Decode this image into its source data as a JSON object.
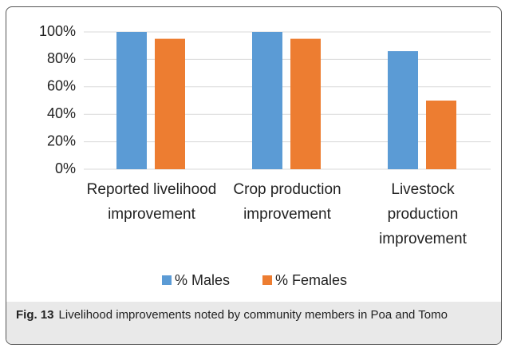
{
  "chart_data": {
    "type": "bar",
    "categories": [
      "Reported livelihood improvement",
      "Crop production improvement",
      "Livestock production improvement"
    ],
    "series": [
      {
        "name": "% Males",
        "color": "#5b9bd5",
        "values": [
          100,
          100,
          86
        ]
      },
      {
        "name": "% Females",
        "color": "#ed7d31",
        "values": [
          95,
          95,
          50
        ]
      }
    ],
    "ylim": [
      0,
      100
    ],
    "yticks": [
      {
        "value": 0,
        "label": "0%"
      },
      {
        "value": 20,
        "label": "20%"
      },
      {
        "value": 40,
        "label": "40%"
      },
      {
        "value": 60,
        "label": "60%"
      },
      {
        "value": 80,
        "label": "80%"
      },
      {
        "value": 100,
        "label": "100%"
      }
    ],
    "grid": true,
    "legend": "bottom",
    "caption": {
      "label": "Fig. 13",
      "text": "Livelihood improvements noted by community members in Poa and Tomo"
    }
  }
}
